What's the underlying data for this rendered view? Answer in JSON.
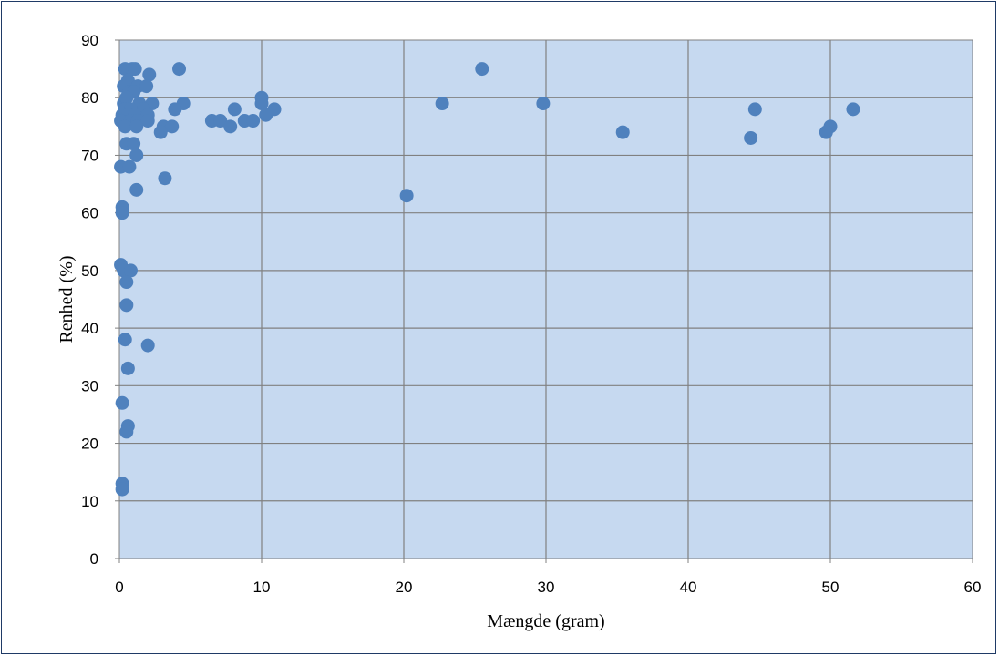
{
  "chart_data": {
    "type": "scatter",
    "title": "",
    "xlabel": "Mængde (gram)",
    "ylabel": "Renhed (%)",
    "xlim": [
      0,
      60
    ],
    "ylim": [
      0,
      90
    ],
    "xticks": [
      "0",
      "10",
      "20",
      "30",
      "40",
      "50",
      "60"
    ],
    "yticks": [
      "0",
      "10",
      "20",
      "30",
      "40",
      "50",
      "60",
      "70",
      "80",
      "90"
    ],
    "grid": true,
    "legend": "none",
    "colors": {
      "plot_bg": "#c6d9f0",
      "marker": "#4f81bd",
      "grid": "#808080",
      "frame": "#1f3a66"
    },
    "series": [
      {
        "points": [
          [
            0.4,
            85
          ],
          [
            0.9,
            85
          ],
          [
            1.1,
            85
          ],
          [
            4.2,
            85
          ],
          [
            25.5,
            85
          ],
          [
            2.1,
            84
          ],
          [
            0.6,
            83
          ],
          [
            0.3,
            82
          ],
          [
            1.3,
            82
          ],
          [
            1.9,
            82
          ],
          [
            0.7,
            81
          ],
          [
            1.0,
            81
          ],
          [
            10.0,
            80
          ],
          [
            0.3,
            79
          ],
          [
            0.5,
            80
          ],
          [
            1.4,
            79
          ],
          [
            2.3,
            79
          ],
          [
            4.5,
            79
          ],
          [
            10.0,
            79
          ],
          [
            22.7,
            79
          ],
          [
            29.8,
            79
          ],
          [
            0.4,
            78
          ],
          [
            0.8,
            78
          ],
          [
            1.7,
            78
          ],
          [
            3.9,
            78
          ],
          [
            8.1,
            78
          ],
          [
            10.9,
            78
          ],
          [
            44.7,
            78
          ],
          [
            51.6,
            78
          ],
          [
            0.2,
            77
          ],
          [
            0.6,
            77
          ],
          [
            1.1,
            77
          ],
          [
            2.0,
            77
          ],
          [
            10.3,
            77
          ],
          [
            0.1,
            76
          ],
          [
            0.8,
            76
          ],
          [
            1.3,
            76
          ],
          [
            2.0,
            76
          ],
          [
            6.5,
            76
          ],
          [
            7.1,
            76
          ],
          [
            8.8,
            76
          ],
          [
            9.4,
            76
          ],
          [
            0.4,
            75
          ],
          [
            1.2,
            75
          ],
          [
            3.1,
            75
          ],
          [
            3.7,
            75
          ],
          [
            7.8,
            75
          ],
          [
            50.0,
            75
          ],
          [
            2.9,
            74
          ],
          [
            35.4,
            74
          ],
          [
            49.7,
            74
          ],
          [
            44.4,
            73
          ],
          [
            0.5,
            72
          ],
          [
            1.0,
            72
          ],
          [
            1.2,
            70
          ],
          [
            0.1,
            68
          ],
          [
            0.7,
            68
          ],
          [
            3.2,
            66
          ],
          [
            1.2,
            64
          ],
          [
            20.2,
            63
          ],
          [
            0.2,
            61
          ],
          [
            0.2,
            60
          ],
          [
            0.1,
            51
          ],
          [
            0.3,
            50
          ],
          [
            0.8,
            50
          ],
          [
            0.5,
            48
          ],
          [
            0.5,
            44
          ],
          [
            0.4,
            38
          ],
          [
            2.0,
            37
          ],
          [
            0.6,
            33
          ],
          [
            0.2,
            27
          ],
          [
            0.6,
            23
          ],
          [
            0.5,
            22
          ],
          [
            0.2,
            13
          ],
          [
            0.2,
            12
          ]
        ]
      }
    ]
  }
}
